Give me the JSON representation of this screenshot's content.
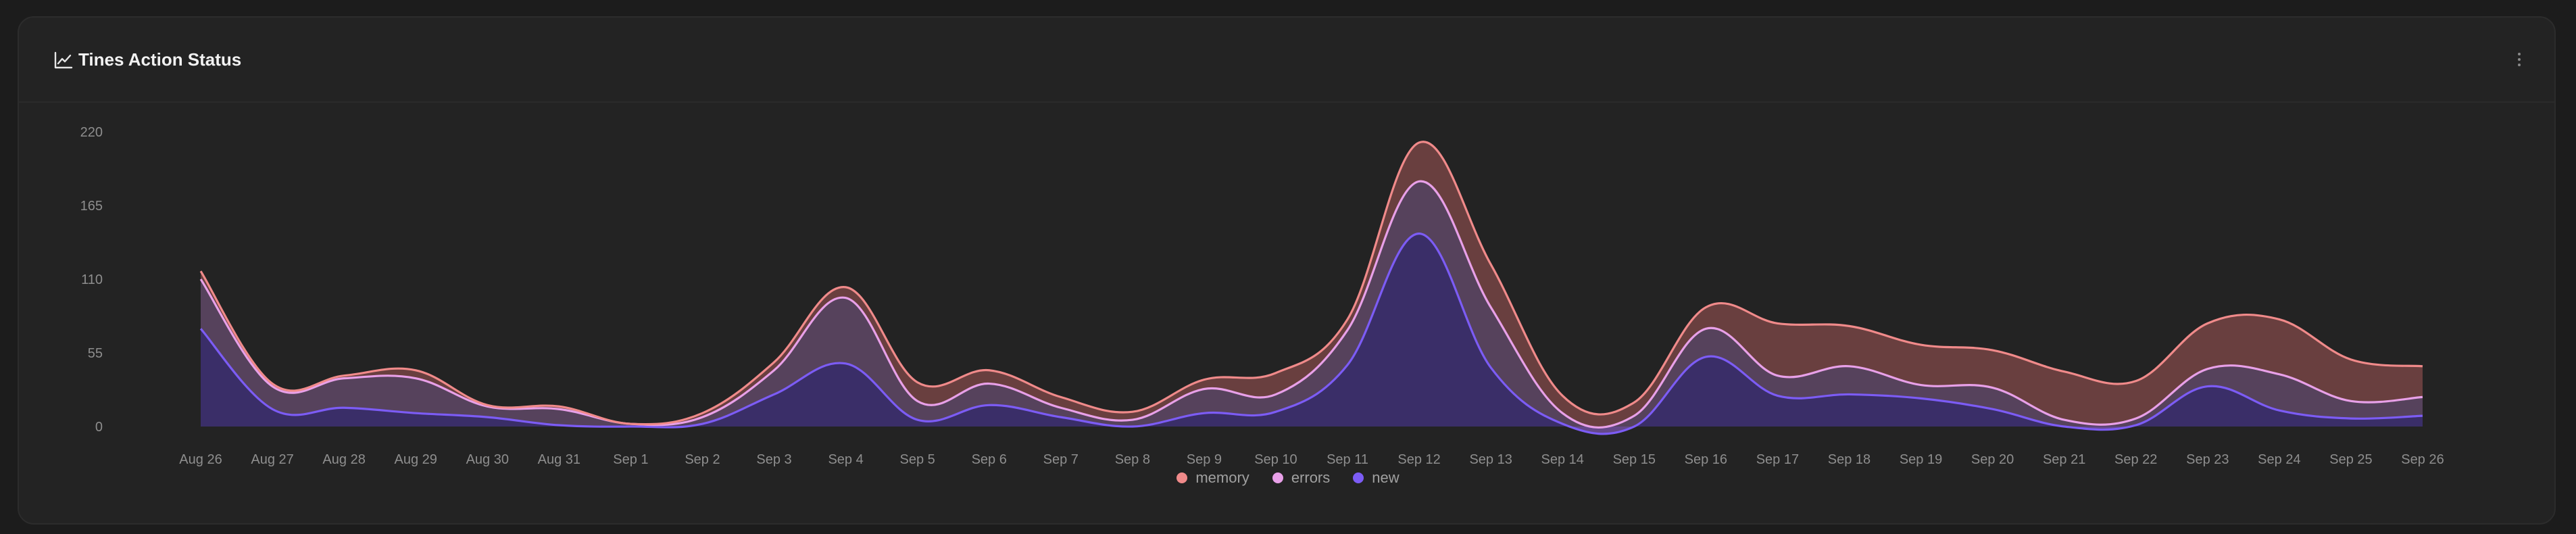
{
  "card": {
    "title": "Tines Action Status",
    "title_icon": "line-chart-icon",
    "menu_icon": "more-vertical-icon"
  },
  "colors": {
    "memory": "#f08a8a",
    "errors": "#e8a0e8",
    "new": "#7c5cf5",
    "grid": "#2e2e2e",
    "tick": "#8e8e8e"
  },
  "chart_data": {
    "type": "area",
    "stacked": true,
    "ylim": [
      0,
      220
    ],
    "yticks": [
      0,
      55,
      110,
      165,
      220
    ],
    "grid": false,
    "legend_position": "bottom-center",
    "categories": [
      "Aug 26",
      "Aug 27",
      "Aug 28",
      "Aug 29",
      "Aug 30",
      "Aug 31",
      "Sep 1",
      "Sep 2",
      "Sep 3",
      "Sep 4",
      "Sep 5",
      "Sep 6",
      "Sep 7",
      "Sep 8",
      "Sep 9",
      "Sep 10",
      "Sep 11",
      "Sep 12",
      "Sep 13",
      "Sep 14",
      "Sep 15",
      "Sep 16",
      "Sep 17",
      "Sep 18",
      "Sep 19",
      "Sep 20",
      "Sep 21",
      "Sep 22",
      "Sep 23",
      "Sep 24",
      "Sep 25",
      "Sep 26"
    ],
    "series": [
      {
        "name": "new",
        "values": [
          73,
          13,
          14,
          10,
          7,
          1,
          0,
          2,
          24,
          47,
          5,
          16,
          7,
          0,
          10,
          11,
          46,
          144,
          44,
          2,
          0,
          52,
          23,
          24,
          21,
          13,
          0,
          1,
          30,
          12,
          6,
          8
        ]
      },
      {
        "name": "errors",
        "values": [
          37,
          17,
          22,
          26,
          8,
          12,
          2,
          5,
          18,
          49,
          14,
          16,
          7,
          5,
          18,
          13,
          26,
          39,
          45,
          8,
          8,
          21,
          15,
          21,
          10,
          16,
          5,
          5,
          13,
          27,
          13,
          14
        ]
      },
      {
        "name": "memory",
        "values": [
          6,
          2,
          2,
          6,
          1,
          2,
          0,
          3,
          6,
          8,
          14,
          10,
          8,
          6,
          7,
          16,
          8,
          29,
          32,
          13,
          10,
          16,
          39,
          30,
          30,
          28,
          36,
          28,
          34,
          41,
          31,
          23
        ]
      }
    ]
  }
}
